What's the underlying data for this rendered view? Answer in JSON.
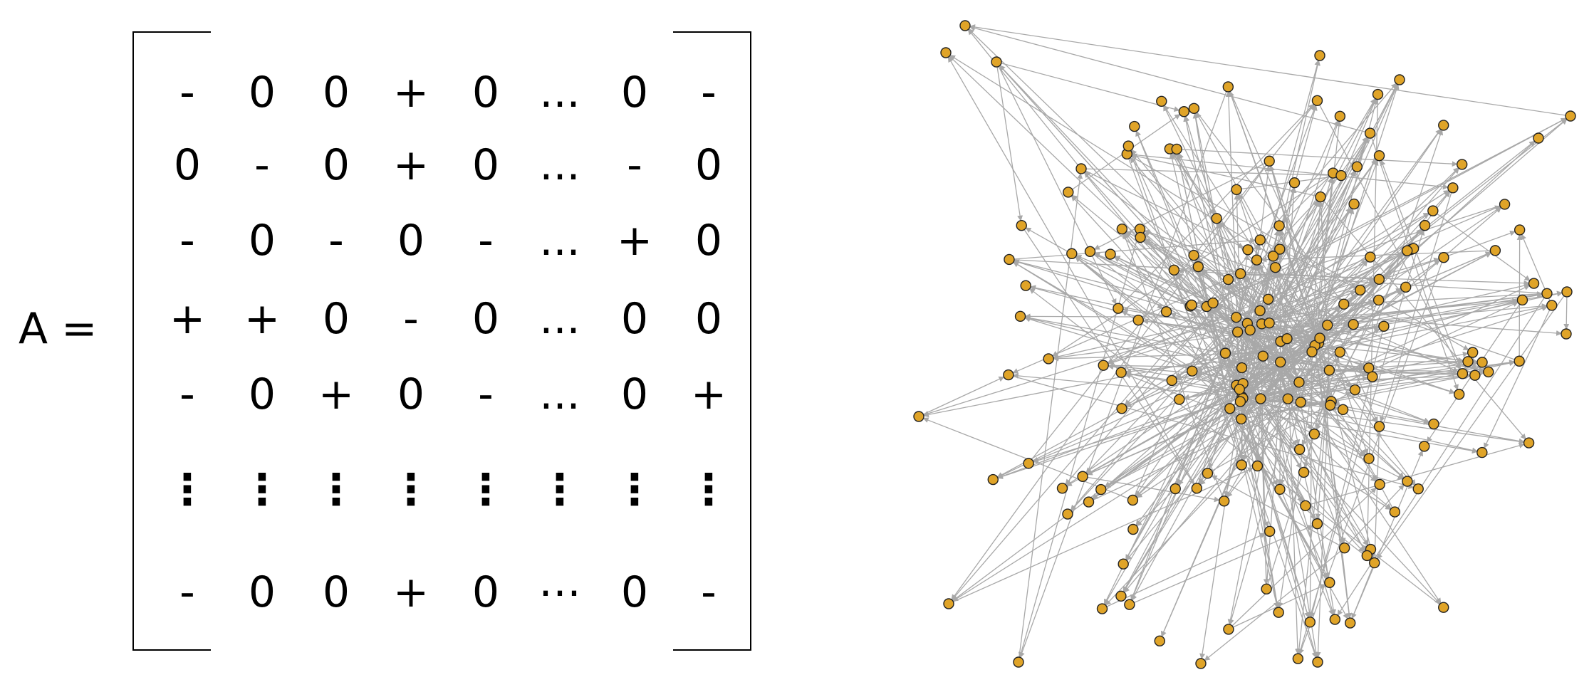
{
  "equation": {
    "lhs": "A ="
  },
  "matrix": {
    "rows": [
      [
        "-",
        "0",
        "0",
        "+",
        "0",
        "...",
        "0",
        "-"
      ],
      [
        "0",
        "-",
        "0",
        "+",
        "0",
        "...",
        "-",
        "0"
      ],
      [
        "-",
        "0",
        "-",
        "0",
        "-",
        "...",
        "+",
        "0"
      ],
      [
        "+",
        "+",
        "0",
        "-",
        "0",
        "...",
        "0",
        "0"
      ],
      [
        "-",
        "0",
        "+",
        "0",
        "-",
        "...",
        "0",
        "+"
      ],
      [
        "⋮",
        "⋮",
        "⋮",
        "⋮",
        "⋮",
        "⋮",
        "⋮",
        "⋮"
      ],
      [
        "-",
        "0",
        "0",
        "+",
        "0",
        "⋯",
        "0",
        "-"
      ]
    ]
  },
  "network": {
    "node_fill": "#E0A428",
    "node_stroke": "#222222",
    "edge_color": "#A8A8A8",
    "node_count": 190
  }
}
